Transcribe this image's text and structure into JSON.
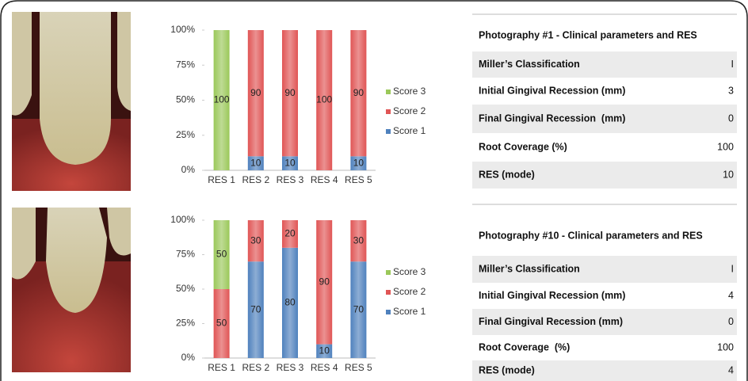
{
  "chart_data": [
    {
      "type": "stacked-bar",
      "categories": [
        "RES 1",
        "RES 2",
        "RES 3",
        "RES 4",
        "RES 5"
      ],
      "series": [
        {
          "name": "Score 1",
          "color": "#4f81bd",
          "values": [
            0,
            10,
            10,
            0,
            10
          ]
        },
        {
          "name": "Score 2",
          "color": "#e05555",
          "values": [
            0,
            90,
            90,
            100,
            90
          ]
        },
        {
          "name": "Score 3",
          "color": "#9bc85a",
          "values": [
            100,
            0,
            0,
            0,
            0
          ]
        }
      ],
      "ylim": [
        0,
        100
      ],
      "yticks": [
        {
          "value": 0,
          "label": "0%"
        },
        {
          "value": 25,
          "label": "25%"
        },
        {
          "value": 50,
          "label": "50%"
        },
        {
          "value": 75,
          "label": "75%"
        },
        {
          "value": 100,
          "label": "100%"
        }
      ],
      "legend": "right"
    },
    {
      "type": "stacked-bar",
      "categories": [
        "RES 1",
        "RES 2",
        "RES 3",
        "RES 4",
        "RES 5"
      ],
      "series": [
        {
          "name": "Score 1",
          "color": "#4f81bd",
          "values": [
            0,
            70,
            80,
            10,
            70
          ]
        },
        {
          "name": "Score 2",
          "color": "#e05555",
          "values": [
            50,
            30,
            20,
            90,
            30
          ]
        },
        {
          "name": "Score 3",
          "color": "#9bc85a",
          "values": [
            50,
            0,
            0,
            0,
            0
          ]
        }
      ],
      "ylim": [
        0,
        100
      ],
      "yticks": [
        {
          "value": 0,
          "label": "0%"
        },
        {
          "value": 25,
          "label": "25%"
        },
        {
          "value": 50,
          "label": "50%"
        },
        {
          "value": 75,
          "label": "75%"
        },
        {
          "value": 100,
          "label": "100%"
        }
      ],
      "legend": "right"
    }
  ],
  "tables": [
    {
      "title": "Photography #1 - Clinical parameters and RES",
      "rows": [
        [
          "Miller’s Classification",
          "I"
        ],
        [
          "Initial Gingival Recession (mm)",
          "3"
        ],
        [
          "Final Gingival Recession  (mm)",
          "0"
        ],
        [
          "Root Coverage (%)",
          "100"
        ],
        [
          "RES (mode)",
          "10"
        ]
      ]
    },
    {
      "title": "Photography #10 - Clinical parameters and RES",
      "rows": [
        [
          "Miller’s Classification",
          "I"
        ],
        [
          "Initial Gingival Recession (mm)",
          "4"
        ],
        [
          "Final Gingival Recession (mm)",
          "0"
        ],
        [
          "Root Coverage  (%)",
          "100"
        ],
        [
          "RES (mode)",
          "4"
        ]
      ]
    }
  ]
}
